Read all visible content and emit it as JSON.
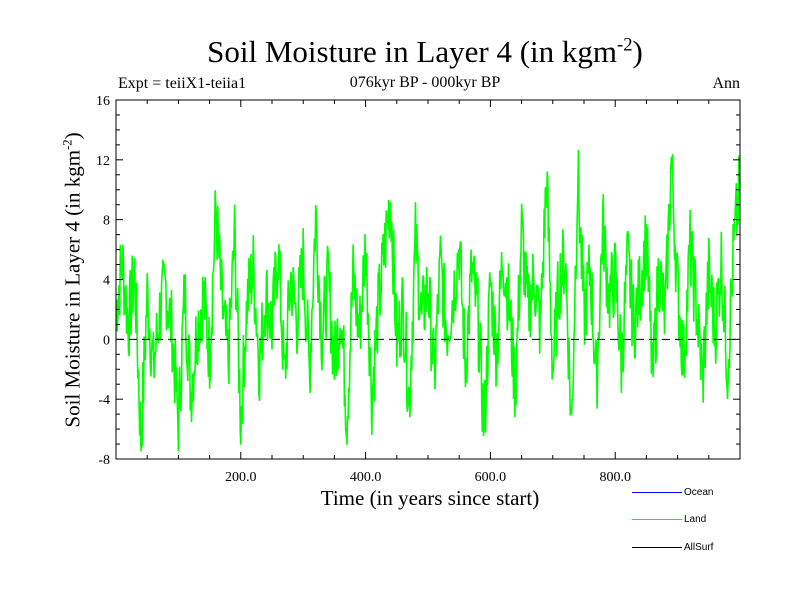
{
  "header": {
    "title_main": "Soil Moisture in Layer 4 (in kgm",
    "title_exp": "-2",
    "title_close": ")",
    "subtitle": "076kyr BP - 000kyr BP",
    "experiment": "Expt = teiiX1-teiia1",
    "season": "Ann"
  },
  "axes": {
    "ylabel_main": "Soil Moisture in Layer 4 (in kgm",
    "ylabel_exp": "-2",
    "ylabel_close": ")",
    "xlabel": "Time (in years since start)"
  },
  "legend": {
    "items": [
      {
        "label": "Ocean",
        "color": "#0000ff"
      },
      {
        "label": "Land",
        "color": "#00ff00"
      },
      {
        "label": "AllSurf",
        "color": "#000000"
      }
    ]
  },
  "chart_data": {
    "type": "line",
    "title": "Soil Moisture in Layer 4 (in kgm-2)",
    "subtitle": "076kyr BP - 000kyr BP",
    "xlabel": "Time (in years since start)",
    "ylabel": "Soil Moisture in Layer 4 (in kgm-2)",
    "xlim": [
      0,
      1000
    ],
    "ylim": [
      -8,
      16
    ],
    "x_ticks": [
      200,
      400,
      600,
      800
    ],
    "x_tick_labels": [
      "200.0",
      "400.0",
      "600.0",
      "800.0"
    ],
    "y_ticks": [
      -8,
      -4,
      0,
      4,
      8,
      12,
      16
    ],
    "y_tick_labels": [
      "-8",
      "-4",
      "0",
      "4",
      "8",
      "12",
      "16"
    ],
    "zero_line": true,
    "grid": false,
    "legend_position": "bottom-right",
    "series": [
      {
        "name": "Land",
        "color": "#00ff00",
        "x": [
          0,
          10,
          20,
          30,
          40,
          50,
          60,
          70,
          80,
          90,
          100,
          110,
          120,
          130,
          140,
          150,
          160,
          170,
          180,
          190,
          200,
          210,
          220,
          230,
          240,
          250,
          260,
          270,
          280,
          290,
          300,
          310,
          320,
          330,
          340,
          350,
          360,
          370,
          380,
          390,
          400,
          410,
          420,
          430,
          440,
          450,
          460,
          470,
          480,
          490,
          500,
          510,
          520,
          530,
          540,
          550,
          560,
          570,
          580,
          590,
          600,
          610,
          620,
          630,
          640,
          650,
          660,
          670,
          680,
          690,
          700,
          710,
          720,
          730,
          740,
          750,
          760,
          770,
          780,
          790,
          800,
          810,
          820,
          830,
          840,
          850,
          860,
          870,
          880,
          890,
          900,
          910,
          920,
          930,
          940,
          950,
          960,
          970,
          980,
          990,
          1000
        ],
        "values": [
          2.0,
          5.2,
          1.0,
          4.5,
          -6.8,
          3.0,
          -2.0,
          1.8,
          3.5,
          0.5,
          -5.8,
          3.2,
          -3.5,
          0.8,
          3.0,
          -1.0,
          8.7,
          2.2,
          -1.5,
          6.9,
          -5.4,
          2.5,
          4.8,
          -1.7,
          3.2,
          0.8,
          6.0,
          -2.8,
          4.2,
          1.3,
          5.3,
          -2.2,
          8.5,
          0.2,
          3.9,
          -1.6,
          2.1,
          -5.1,
          4.2,
          0.3,
          6.4,
          -3.8,
          1.9,
          5.8,
          9.8,
          -0.4,
          2.4,
          -4.2,
          6.7,
          1.2,
          3.7,
          -2.5,
          5.1,
          0.6,
          2.9,
          6.3,
          -1.8,
          4.6,
          1.5,
          -6.0,
          3.8,
          -0.9,
          5.7,
          2.3,
          -3.4,
          7.4,
          1.8,
          4.2,
          0.7,
          11.0,
          -2.2,
          3.8,
          5.6,
          -6.0,
          11.1,
          1.4,
          4.7,
          -3.0,
          7.8,
          2.7,
          4.3,
          -1.6,
          5.3,
          0.9,
          3.6,
          6.8,
          -2.9,
          4.8,
          1.3,
          12.0,
          3.2,
          -1.4,
          6.1,
          2.3,
          -2.8,
          4.4,
          0.6,
          5.3,
          -1.9,
          6.1,
          10.5
        ]
      },
      {
        "name": "Ocean",
        "color": "#0000ff",
        "x": [],
        "values": []
      },
      {
        "name": "AllSurf",
        "color": "#000000",
        "x": [],
        "values": []
      }
    ]
  }
}
